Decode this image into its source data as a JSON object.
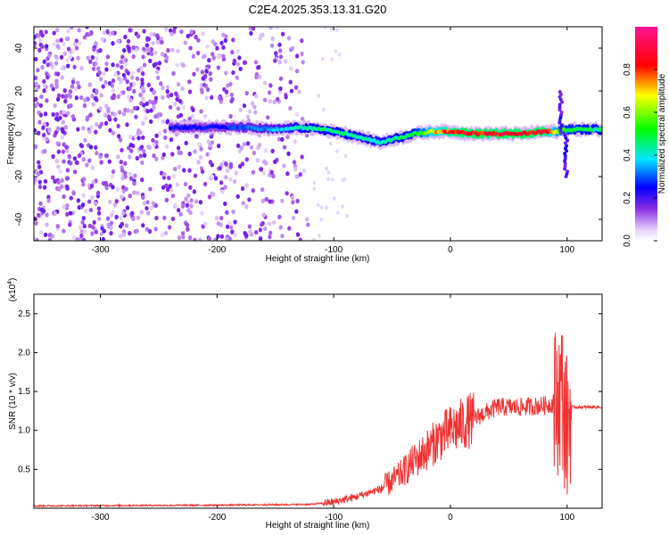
{
  "title": "C2E4.2025.353.13.31.G20",
  "chart_data": [
    {
      "type": "heatmap",
      "xlabel": "Height of straight line (km)",
      "ylabel": "Frequency (Hz)",
      "xlim": [
        -357,
        130
      ],
      "ylim": [
        -50,
        50
      ],
      "xticks": [
        -300,
        -200,
        -100,
        0,
        100
      ],
      "yticks": [
        -40,
        -20,
        0,
        20,
        40
      ],
      "colorbar": {
        "label": "Normalized spectral amplitude",
        "range": [
          0,
          1
        ],
        "ticks": [
          "0.0",
          "0.2",
          "0.4",
          "0.6",
          "0.8"
        ],
        "ticks_values": [
          0,
          0.2,
          0.4,
          0.6,
          0.8
        ],
        "colormap": "rainbow (white→violet→blue→cyan→green→yellow→red→magenta)"
      },
      "noise_region": {
        "x_range": [
          -357,
          -122
        ],
        "frequency_range": [
          -50,
          50
        ],
        "amplitude": 0.15
      },
      "ridge": {
        "description": "Dominant frequency ridge near 0 Hz",
        "x": [
          -240,
          -200,
          -180,
          -150,
          -130,
          -110,
          -90,
          -75,
          -60,
          -45,
          -30,
          -15,
          0,
          20,
          40,
          60,
          80,
          92,
          100,
          130
        ],
        "frequency": [
          3,
          3,
          3,
          2,
          3,
          2,
          0,
          -2,
          -4,
          -2,
          0,
          1,
          1,
          0,
          0,
          0,
          1,
          1,
          2,
          2
        ],
        "amplitude": [
          0.25,
          0.25,
          0.3,
          0.35,
          0.4,
          0.45,
          0.45,
          0.4,
          0.4,
          0.45,
          0.5,
          0.7,
          0.8,
          0.85,
          0.85,
          0.85,
          0.85,
          0.6,
          0.5,
          0.45
        ]
      },
      "excursion": {
        "x": 97,
        "frequency_range": [
          -20,
          20
        ]
      }
    },
    {
      "type": "line",
      "xlabel": "Height of straight line (km)",
      "ylabel": "SNR (10 * v/v)",
      "y_multiplier": "(x10",
      "y_multiplier_exp": "4",
      "y_multiplier_close": ")",
      "xlim": [
        -357,
        130
      ],
      "ylim": [
        0,
        2.75
      ],
      "xticks": [
        -300,
        -200,
        -100,
        0,
        100
      ],
      "yticks": [
        "0.5",
        "1.0",
        "1.5",
        "2.0",
        "2.5"
      ],
      "yticks_values": [
        0.5,
        1.0,
        1.5,
        2.0,
        2.5
      ],
      "series": [
        {
          "color": "#ee3333",
          "x": [
            -357,
            -200,
            -120,
            -100,
            -80,
            -60,
            -45,
            -35,
            -20,
            -10,
            0,
            20,
            40,
            60,
            80,
            90,
            95,
            100,
            103,
            110,
            130
          ],
          "y": [
            0.03,
            0.04,
            0.05,
            0.08,
            0.15,
            0.25,
            0.4,
            0.55,
            0.75,
            0.9,
            1.0,
            1.15,
            1.3,
            1.3,
            1.32,
            1.35,
            1.5,
            1.0,
            1.3,
            1.3,
            1.3
          ]
        }
      ]
    }
  ]
}
